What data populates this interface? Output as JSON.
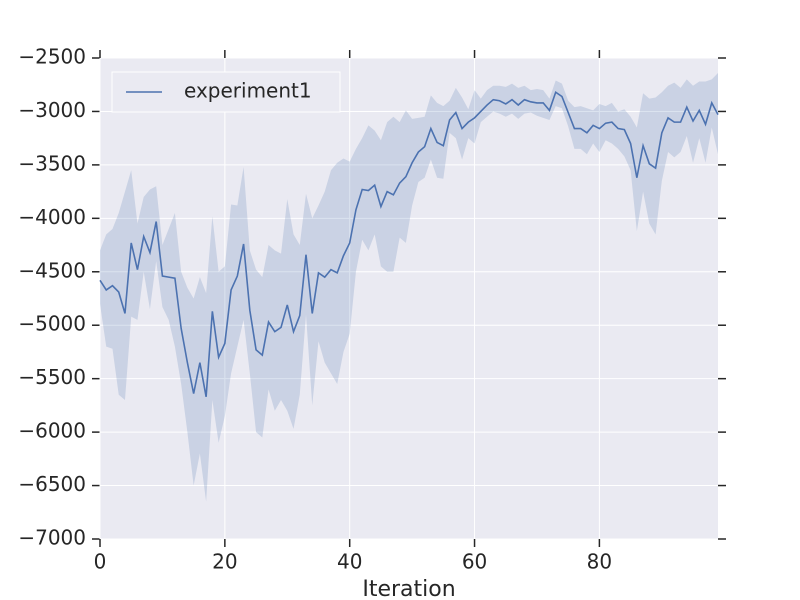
{
  "chart_data": {
    "type": "line",
    "x_label": "Iteration",
    "x": [
      0,
      1,
      2,
      3,
      4,
      5,
      6,
      7,
      8,
      9,
      10,
      11,
      12,
      13,
      14,
      15,
      16,
      17,
      18,
      19,
      20,
      21,
      22,
      23,
      24,
      25,
      26,
      27,
      28,
      29,
      30,
      31,
      32,
      33,
      34,
      35,
      36,
      37,
      38,
      39,
      40,
      41,
      42,
      43,
      44,
      45,
      46,
      47,
      48,
      49,
      50,
      51,
      52,
      53,
      54,
      55,
      56,
      57,
      58,
      59,
      60,
      61,
      62,
      63,
      64,
      65,
      66,
      67,
      68,
      69,
      70,
      71,
      72,
      73,
      74,
      75,
      76,
      77,
      78,
      79,
      80,
      81,
      82,
      83,
      84,
      85,
      86,
      87,
      88,
      89,
      90,
      91,
      92,
      93,
      94,
      95,
      96,
      97,
      98,
      99
    ],
    "series": [
      {
        "name": "experiment1",
        "color": "#4c72b0",
        "values": [
          -4580,
          -4670,
          -4630,
          -4690,
          -4890,
          -4230,
          -4480,
          -4170,
          -4320,
          -4030,
          -4540,
          -4550,
          -4560,
          -5030,
          -5350,
          -5640,
          -5350,
          -5670,
          -4870,
          -5300,
          -5170,
          -4670,
          -4540,
          -4240,
          -4860,
          -5230,
          -5280,
          -4970,
          -5060,
          -5020,
          -4810,
          -5060,
          -4910,
          -4340,
          -4890,
          -4510,
          -4550,
          -4480,
          -4510,
          -4350,
          -4230,
          -3920,
          -3730,
          -3740,
          -3690,
          -3890,
          -3750,
          -3780,
          -3670,
          -3610,
          -3480,
          -3380,
          -3330,
          -3160,
          -3290,
          -3320,
          -3080,
          -3010,
          -3160,
          -3100,
          -3060,
          -3000,
          -2940,
          -2890,
          -2900,
          -2930,
          -2890,
          -2940,
          -2890,
          -2910,
          -2920,
          -2920,
          -2990,
          -2820,
          -2860,
          -3010,
          -3160,
          -3160,
          -3200,
          -3130,
          -3160,
          -3110,
          -3100,
          -3160,
          -3170,
          -3300,
          -3620,
          -3320,
          -3490,
          -3530,
          -3200,
          -3060,
          -3100,
          -3100,
          -2960,
          -3090,
          -2990,
          -3120,
          -2920,
          -3030
        ],
        "upper": [
          -4300,
          -4150,
          -4100,
          -3950,
          -3750,
          -3550,
          -4050,
          -3800,
          -3730,
          -3700,
          -4250,
          -4100,
          -3950,
          -4500,
          -4650,
          -4750,
          -4550,
          -4700,
          -3980,
          -4500,
          -4450,
          -3870,
          -3880,
          -3520,
          -4300,
          -4480,
          -4550,
          -4250,
          -4300,
          -4330,
          -3820,
          -4150,
          -4250,
          -3770,
          -4000,
          -3880,
          -3750,
          -3550,
          -3480,
          -3440,
          -3470,
          -3350,
          -3250,
          -3130,
          -3180,
          -3270,
          -3100,
          -3050,
          -3100,
          -2990,
          -3070,
          -3060,
          -3050,
          -2850,
          -2920,
          -2950,
          -2900,
          -2780,
          -2870,
          -2980,
          -2800,
          -2880,
          -2800,
          -2760,
          -2760,
          -2770,
          -2740,
          -2780,
          -2760,
          -2800,
          -2790,
          -2800,
          -2880,
          -2710,
          -2740,
          -2900,
          -2960,
          -2950,
          -2970,
          -2990,
          -2930,
          -2950,
          -2920,
          -3000,
          -2980,
          -3050,
          -3150,
          -2830,
          -2880,
          -2870,
          -2820,
          -2760,
          -2730,
          -2780,
          -2700,
          -2760,
          -2720,
          -2720,
          -2700,
          -2640
        ],
        "lower": [
          -4800,
          -5200,
          -5220,
          -5650,
          -5700,
          -4920,
          -4950,
          -4500,
          -4850,
          -4400,
          -4830,
          -4950,
          -5200,
          -5550,
          -6000,
          -6500,
          -6200,
          -6650,
          -5700,
          -6100,
          -5850,
          -5450,
          -5200,
          -4950,
          -5450,
          -6000,
          -6050,
          -5600,
          -5800,
          -5700,
          -5800,
          -5970,
          -5650,
          -4900,
          -5750,
          -5150,
          -5350,
          -5450,
          -5550,
          -5250,
          -5080,
          -4500,
          -4200,
          -4300,
          -4150,
          -4450,
          -4500,
          -4500,
          -4180,
          -4230,
          -3880,
          -3660,
          -3620,
          -3450,
          -3620,
          -3630,
          -3200,
          -3250,
          -3450,
          -3250,
          -3300,
          -3100,
          -3050,
          -3000,
          -3020,
          -3050,
          -3020,
          -3070,
          -3020,
          -3010,
          -3040,
          -3060,
          -3080,
          -2950,
          -2970,
          -3140,
          -3350,
          -3350,
          -3400,
          -3300,
          -3380,
          -3270,
          -3300,
          -3350,
          -3420,
          -3550,
          -4120,
          -3750,
          -4050,
          -4150,
          -3650,
          -3380,
          -3430,
          -3380,
          -3230,
          -3480,
          -3250,
          -3480,
          -3150,
          -3400
        ]
      }
    ],
    "xlim": [
      0,
      99
    ],
    "ylim": [
      -7000,
      -2500
    ],
    "xticks": [
      0,
      20,
      40,
      60,
      80
    ],
    "yticks": [
      {
        "value": -7000,
        "label": "−7000"
      },
      {
        "value": -6500,
        "label": "−6500"
      },
      {
        "value": -6000,
        "label": "−6000"
      },
      {
        "value": -5500,
        "label": "−5500"
      },
      {
        "value": -5000,
        "label": "−5000"
      },
      {
        "value": -4500,
        "label": "−4500"
      },
      {
        "value": -4000,
        "label": "−4000"
      },
      {
        "value": -3500,
        "label": "−3500"
      },
      {
        "value": -3000,
        "label": "−3000"
      },
      {
        "value": -2500,
        "label": "−2500"
      }
    ],
    "grid": true,
    "legend": "upper left"
  }
}
